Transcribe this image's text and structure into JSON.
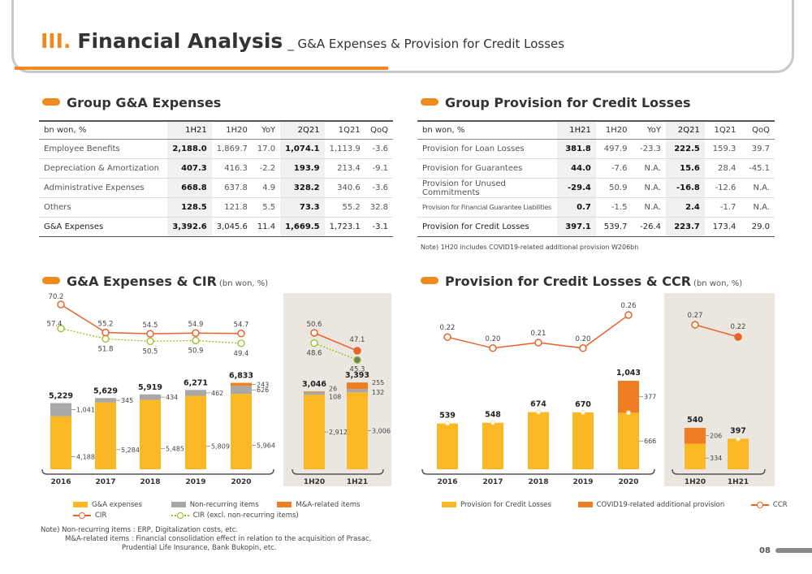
{
  "header": {
    "roman": "III.",
    "title": "Financial Analysis",
    "subtitle": "_ G&A Expenses & Provision for Credit Losses"
  },
  "ga_table": {
    "title": "Group G&A Expenses",
    "columns": [
      "bn won, %",
      "1H21",
      "1H20",
      "YoY",
      "2Q21",
      "1Q21",
      "QoQ"
    ],
    "rows": [
      [
        "Employee Benefits",
        "2,188.0",
        "1,869.7",
        "17.0",
        "1,074.1",
        "1,113.9",
        "-3.6"
      ],
      [
        "Depreciation & Amortization",
        "407.3",
        "416.3",
        "-2.2",
        "193.9",
        "213.4",
        "-9.1"
      ],
      [
        "Administrative Expenses",
        "668.8",
        "637.8",
        "4.9",
        "328.2",
        "340.6",
        "-3.6"
      ],
      [
        "Others",
        "128.5",
        "121.8",
        "5.5",
        "73.3",
        "55.2",
        "32.8"
      ]
    ],
    "total": [
      "G&A Expenses",
      "3,392.6",
      "3,045.6",
      "11.4",
      "1,669.5",
      "1,723.1",
      "-3.1"
    ]
  },
  "pcl_table": {
    "title": "Group Provision for Credit Losses",
    "columns": [
      "bn won, %",
      "1H21",
      "1H20",
      "YoY",
      "2Q21",
      "1Q21",
      "QoQ"
    ],
    "rows": [
      [
        "Provision for Loan Losses",
        "381.8",
        "497.9",
        "-23.3",
        "222.5",
        "159.3",
        "39.7"
      ],
      [
        "Provision for Guarantees",
        "44.0",
        "-7.6",
        "N.A.",
        "15.6",
        "28.4",
        "-45.1"
      ],
      [
        "Provision for Unused Commitments",
        "-29.4",
        "50.9",
        "N.A.",
        "-16.8",
        "-12.6",
        "N.A."
      ],
      [
        "Provision for Financial Guarantee Liabilities",
        "0.7",
        "-1.5",
        "N.A.",
        "2.4",
        "-1.7",
        "N.A."
      ]
    ],
    "total": [
      "Provision for Credit Losses",
      "397.1",
      "539.7",
      "-26.4",
      "223.7",
      "173.4",
      "29.0"
    ],
    "note": "Note) 1H20 includes COVID19-related additional provision W206bn"
  },
  "chart_data": [
    {
      "type": "bar",
      "title": "G&A Expenses & CIR",
      "unit": "(bn won, %)",
      "categories": [
        "2016",
        "2017",
        "2018",
        "2019",
        "2020"
      ],
      "series": [
        {
          "name": "G&A expenses",
          "color": "#fbb824",
          "values": [
            4188,
            5284,
            5485,
            5809,
            5964
          ]
        },
        {
          "name": "Non-recurring items",
          "color": "#a8a8a8",
          "values": [
            1041,
            345,
            434,
            462,
            626
          ]
        },
        {
          "name": "M&A-related items",
          "color": "#ef7d22",
          "values": [
            0,
            0,
            0,
            0,
            243
          ]
        }
      ],
      "totals": [
        "5,229",
        "5,629",
        "5,919",
        "6,271",
        "6,833"
      ],
      "segment_labels": [
        [
          "4,188",
          "1,041"
        ],
        [
          "5,284",
          "345"
        ],
        [
          "5,485",
          "434"
        ],
        [
          "5,809",
          "462"
        ],
        [
          "5,964",
          "626",
          "243"
        ]
      ],
      "lines": [
        {
          "name": "CIR",
          "color": "#e8632a",
          "values": [
            70.2,
            55.2,
            54.5,
            54.9,
            54.7
          ]
        },
        {
          "name": "CIR (excl. non-recurring items)",
          "color": "#8fc31f",
          "values": [
            57.4,
            51.8,
            50.5,
            50.9,
            49.4
          ]
        }
      ],
      "half": {
        "categories": [
          "1H20",
          "1H21"
        ],
        "ga": [
          2912,
          3006
        ],
        "nonrec": [
          108,
          132
        ],
        "ma": [
          26,
          255
        ],
        "totals": [
          "3,046",
          "3,393"
        ],
        "labels": [
          [
            "2,912",
            "108",
            "26"
          ],
          [
            "3,006",
            "132",
            "255"
          ]
        ],
        "cir": [
          50.6,
          47.1
        ],
        "cir_ex": [
          48.6,
          45.3
        ]
      }
    },
    {
      "type": "bar",
      "title": "Provision for Credit Losses & CCR",
      "unit": "(bn won, %)",
      "categories": [
        "2016",
        "2017",
        "2018",
        "2019",
        "2020"
      ],
      "series": [
        {
          "name": "Provision for Credit Losses",
          "color": "#fbb824",
          "values": [
            539,
            548,
            674,
            670,
            666
          ]
        },
        {
          "name": "COVID19-related additional provision",
          "color": "#ef7d22",
          "values": [
            0,
            0,
            0,
            0,
            377
          ]
        }
      ],
      "totals": [
        "539",
        "548",
        "674",
        "670",
        "1,043"
      ],
      "segment_labels": [
        "666",
        "377"
      ],
      "lines": [
        {
          "name": "CCR",
          "color": "#e8632a",
          "values": [
            0.22,
            0.2,
            0.21,
            0.2,
            0.26
          ]
        }
      ],
      "line_labels": [
        "0.22",
        "0.20",
        "0.21",
        "0.20",
        "0.26"
      ],
      "half": {
        "categories": [
          "1H20",
          "1H21"
        ],
        "pcl": [
          334,
          397
        ],
        "covid": [
          206,
          0
        ],
        "totals": [
          "540",
          "397"
        ],
        "labels": [
          "334",
          "206"
        ],
        "ccr": [
          0.27,
          0.22
        ],
        "ccr_labels": [
          "0.27",
          "0.22"
        ]
      }
    }
  ],
  "ga_legend": {
    "ga": "G&A expenses",
    "nonrec": "Non-recurring items",
    "ma": "M&A-related items",
    "cir": "CIR",
    "cir_ex": "CIR (excl. non-recurring items)"
  },
  "pcl_legend": {
    "pcl": "Provision for Credit Losses",
    "covid": "COVID19-related additional provision",
    "ccr": "CCR"
  },
  "notes": {
    "line1": "Note) Non-recurring items : ERP, Digitalization costs, etc.",
    "line2": "M&A-related items : Financial consolidation effect in relation to the acquisition of Prasac,",
    "line3": "Prudential Life Insurance, Bank Bukopin, etc."
  },
  "page": "08"
}
